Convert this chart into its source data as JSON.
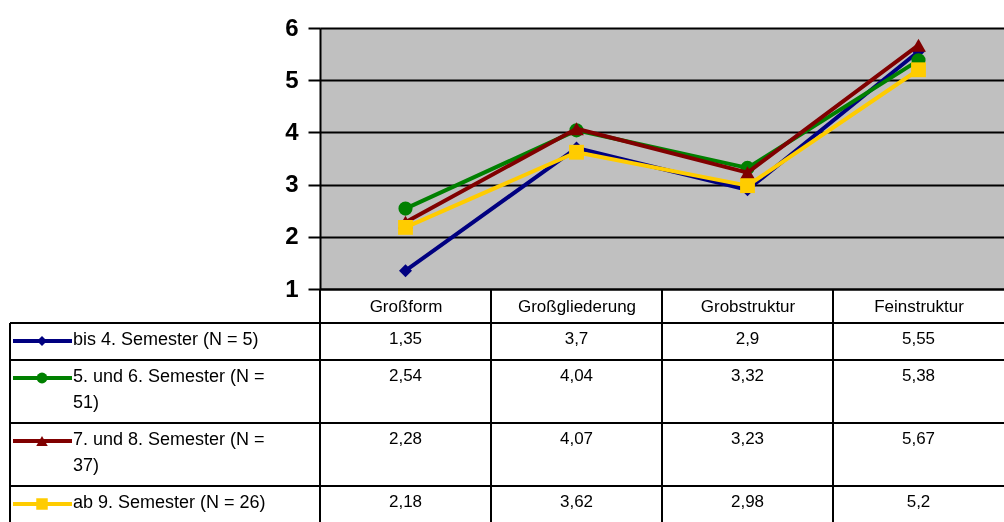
{
  "chart_data": {
    "type": "line",
    "categories": [
      "Großform",
      "Großgliederung",
      "Grobstruktur",
      "Feinstruktur"
    ],
    "series": [
      {
        "name": "bis 4. Semester (N = 5)",
        "color": "#000080",
        "marker": "diamond",
        "values": [
          1.35,
          3.7,
          2.9,
          5.55
        ],
        "value_labels": [
          "1,35",
          "3,7",
          "2,9",
          "5,55"
        ]
      },
      {
        "name": "5. und 6. Semester (N = 51)",
        "color": "#008000",
        "marker": "circle",
        "values": [
          2.54,
          4.04,
          3.32,
          5.38
        ],
        "value_labels": [
          "2,54",
          "4,04",
          "3,32",
          "5,38"
        ]
      },
      {
        "name": "7. und 8. Semester (N = 37)",
        "color": "#800000",
        "marker": "triangle",
        "values": [
          2.28,
          4.07,
          3.23,
          5.67
        ],
        "value_labels": [
          "2,28",
          "4,07",
          "3,23",
          "5,67"
        ]
      },
      {
        "name": "ab 9. Semester (N = 26)",
        "color": "#ffcc00",
        "marker": "square",
        "values": [
          2.18,
          3.62,
          2.98,
          5.2
        ],
        "value_labels": [
          "2,18",
          "3,62",
          "2,98",
          "5,2"
        ]
      }
    ],
    "ylim": [
      1,
      6
    ],
    "yticks": [
      1,
      2,
      3,
      4,
      5,
      6
    ],
    "grid": "y",
    "legend": "bottom"
  }
}
